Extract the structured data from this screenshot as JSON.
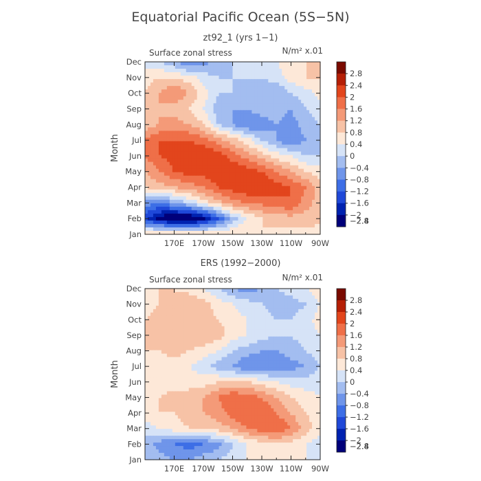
{
  "title": "Equatorial Pacific Ocean (5S−5N)",
  "colors": {
    "levels": [
      "#00007a",
      "#0022b0",
      "#1f48d8",
      "#3d6ee6",
      "#6f95ea",
      "#a3bdf0",
      "#d6e3f7",
      "#fde8d8",
      "#f7c2a6",
      "#f49a78",
      "#ef6f48",
      "#e2451c",
      "#b51f06",
      "#7a0a00"
    ],
    "line": "#cccccc",
    "axis": "#222222"
  },
  "chart_data": [
    {
      "type": "heatmap",
      "title": "zt92_1 (yrs 1−1)",
      "subtitle": "Surface zonal stress",
      "units_label": "N/m² x.01",
      "ylabel": "Month",
      "x_ticks": [
        "170E",
        "170W",
        "150W",
        "130W",
        "110W",
        "90W"
      ],
      "y_ticks": [
        "Jan",
        "Feb",
        "Mar",
        "Apr",
        "May",
        "Jun",
        "Jul",
        "Aug",
        "Sep",
        "Oct",
        "Nov",
        "Dec"
      ],
      "xlim_deg_east": [
        150,
        270
      ],
      "colorbar_ticks": [
        "2.8",
        "2.4",
        "2",
        "1.6",
        "1.2",
        "0.8",
        "0.4",
        "0",
        "−0.4",
        "−0.8",
        "−1.2",
        "−1.6",
        "−2",
        "−2.4",
        "−2.8"
      ],
      "lons": [
        150,
        160,
        170,
        180,
        190,
        200,
        210,
        220,
        230,
        240,
        250,
        260,
        270
      ],
      "values": [
        [
          0.4,
          0.6,
          0.8,
          0.8,
          0.6,
          0.4,
          0.4,
          0.4,
          0.4,
          0.2,
          0.2,
          0.3,
          0.2
        ],
        [
          -1.8,
          -2.6,
          -3.0,
          -3.0,
          -2.6,
          -1.6,
          -0.6,
          0.0,
          0.4,
          0.6,
          0.6,
          0.6,
          0.5
        ],
        [
          -1.0,
          -1.2,
          -0.8,
          -0.4,
          0.2,
          0.6,
          1.0,
          1.2,
          1.3,
          1.4,
          1.6,
          1.0,
          0.6
        ],
        [
          0.4,
          0.6,
          0.8,
          1.0,
          1.2,
          1.6,
          1.8,
          2.0,
          2.0,
          1.8,
          1.6,
          1.2,
          0.6
        ],
        [
          0.8,
          1.2,
          1.6,
          1.8,
          1.8,
          2.0,
          2.0,
          1.8,
          1.6,
          1.2,
          0.8,
          0.4,
          0.2
        ],
        [
          1.2,
          1.6,
          1.8,
          2.0,
          2.0,
          1.8,
          1.4,
          1.0,
          0.6,
          0.2,
          0.0,
          -0.4,
          -0.4
        ],
        [
          1.2,
          1.6,
          1.6,
          1.6,
          1.4,
          1.0,
          0.6,
          0.2,
          -0.4,
          -0.8,
          -1.2,
          -0.8,
          -0.4
        ],
        [
          0.6,
          0.8,
          1.0,
          0.8,
          0.4,
          -0.4,
          -0.8,
          -1.2,
          -1.0,
          -0.8,
          -1.0,
          -0.6,
          -0.4
        ],
        [
          0.4,
          0.8,
          0.6,
          0.4,
          0.0,
          -0.6,
          -0.8,
          -0.8,
          -0.6,
          -0.6,
          -0.8,
          -0.4,
          -0.2
        ],
        [
          0.4,
          0.8,
          1.2,
          0.8,
          0.2,
          -0.4,
          -0.4,
          -0.6,
          -0.6,
          -0.8,
          -0.4,
          -0.2,
          0.2
        ],
        [
          0.2,
          0.4,
          0.4,
          0.2,
          -0.2,
          -0.4,
          -0.4,
          -0.4,
          -0.4,
          -0.2,
          0.2,
          0.4,
          0.4
        ],
        [
          -0.2,
          -0.4,
          -0.8,
          -1.2,
          -1.0,
          -0.6,
          -0.4,
          -0.2,
          -0.2,
          0.0,
          0.2,
          0.4,
          0.4
        ]
      ]
    },
    {
      "type": "heatmap",
      "title": "ERS (1992−2000)",
      "subtitle": "Surface zonal stress",
      "units_label": "N/m² x.01",
      "ylabel": "Month",
      "x_ticks": [
        "170E",
        "170W",
        "150W",
        "130W",
        "110W",
        "90W"
      ],
      "y_ticks": [
        "Jan",
        "Feb",
        "Mar",
        "Apr",
        "May",
        "Jun",
        "Jul",
        "Aug",
        "Sep",
        "Oct",
        "Nov",
        "Dec"
      ],
      "xlim_deg_east": [
        150,
        270
      ],
      "colorbar_ticks": [
        "2.8",
        "2.4",
        "2",
        "1.6",
        "1.2",
        "0.8",
        "0.4",
        "0",
        "−0.4",
        "−0.8",
        "−1.2",
        "−1.6",
        "−2",
        "−2.4",
        "−2.8"
      ],
      "lons": [
        150,
        160,
        170,
        180,
        190,
        200,
        210,
        220,
        230,
        240,
        250,
        260,
        270
      ],
      "values": [
        [
          -0.4,
          -0.6,
          -0.8,
          -0.8,
          -0.6,
          -0.4,
          -0.2,
          0.0,
          0.2,
          0.2,
          0.2,
          0.0,
          -0.2
        ],
        [
          -0.6,
          -1.0,
          -1.2,
          -1.4,
          -1.2,
          -1.0,
          -0.4,
          0.0,
          0.2,
          0.4,
          0.2,
          0.0,
          -0.2
        ],
        [
          -0.2,
          0.0,
          0.2,
          0.4,
          0.4,
          0.6,
          0.8,
          1.2,
          1.4,
          1.6,
          1.2,
          0.6,
          0.2
        ],
        [
          0.2,
          0.4,
          0.4,
          0.6,
          0.8,
          1.0,
          1.4,
          1.6,
          1.6,
          1.2,
          0.8,
          0.4,
          0.2
        ],
        [
          0.2,
          0.4,
          0.6,
          0.6,
          0.8,
          1.2,
          1.6,
          1.4,
          1.2,
          0.8,
          0.4,
          0.2,
          0.0
        ],
        [
          0.0,
          0.2,
          0.2,
          0.2,
          0.2,
          0.4,
          0.4,
          0.4,
          0.2,
          0.0,
          -0.2,
          -0.2,
          -0.2
        ],
        [
          0.2,
          0.2,
          0.2,
          0.0,
          -0.2,
          -0.6,
          -0.8,
          -1.2,
          -1.2,
          -1.2,
          -1.0,
          -0.8,
          -0.4
        ],
        [
          0.4,
          0.4,
          0.6,
          0.4,
          0.2,
          0.0,
          -0.4,
          -0.6,
          -0.8,
          -0.8,
          -0.6,
          -0.4,
          -0.2
        ],
        [
          0.4,
          0.6,
          0.6,
          0.8,
          0.8,
          0.6,
          0.2,
          0.0,
          -0.2,
          -0.4,
          -0.4,
          -0.2,
          0.0
        ],
        [
          0.4,
          0.6,
          0.8,
          0.8,
          0.6,
          0.4,
          0.2,
          0.0,
          -0.2,
          -0.4,
          -0.4,
          -0.2,
          0.2
        ],
        [
          0.2,
          0.4,
          0.6,
          0.8,
          0.6,
          0.2,
          0.0,
          -0.2,
          -0.4,
          -0.6,
          -0.6,
          -0.4,
          0.0
        ],
        [
          0.4,
          0.4,
          0.4,
          0.2,
          0.0,
          -0.4,
          -0.8,
          -1.0,
          -0.8,
          -0.4,
          -0.2,
          0.0,
          0.2
        ]
      ]
    }
  ]
}
